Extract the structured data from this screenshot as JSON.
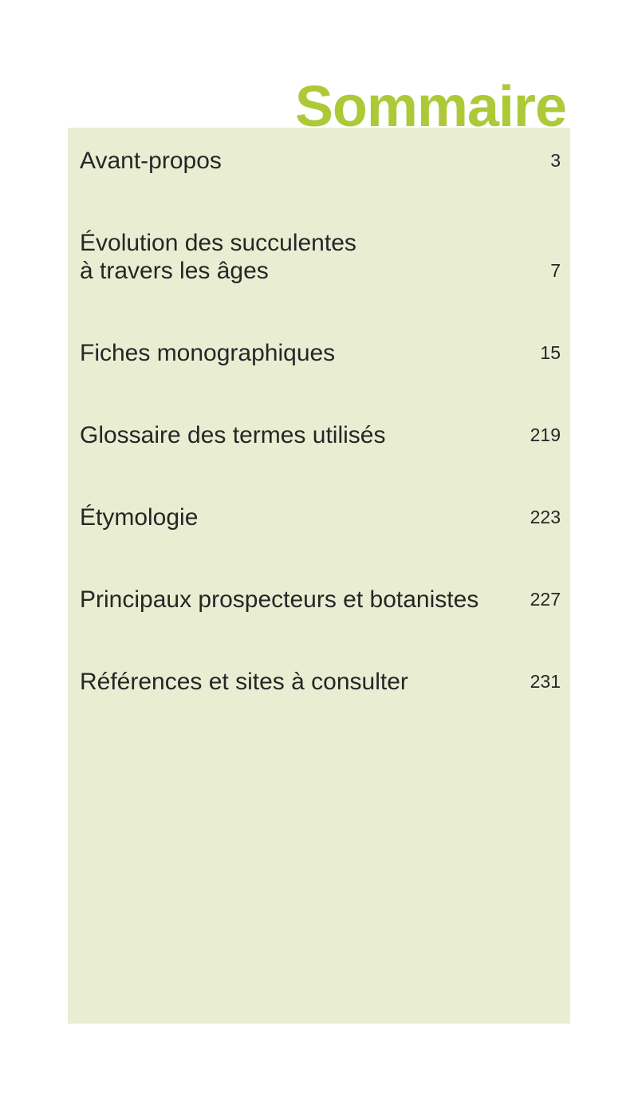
{
  "title": "Sommaire",
  "colors": {
    "title_green": "#aec938",
    "box_bg": "#e9eed3",
    "text": "#262626"
  },
  "toc": {
    "entries": [
      {
        "label": "Avant-propos",
        "page": "3"
      },
      {
        "label": "Évolution des succulentes\nà travers les âges",
        "page": "7"
      },
      {
        "label": "Fiches monographiques",
        "page": "15"
      },
      {
        "label": "Glossaire des termes utilisés",
        "page": "219"
      },
      {
        "label": "Étymologie",
        "page": "223"
      },
      {
        "label": "Principaux prospecteurs et botanistes",
        "page": "227"
      },
      {
        "label": "Références et sites à consulter",
        "page": "231"
      }
    ]
  }
}
